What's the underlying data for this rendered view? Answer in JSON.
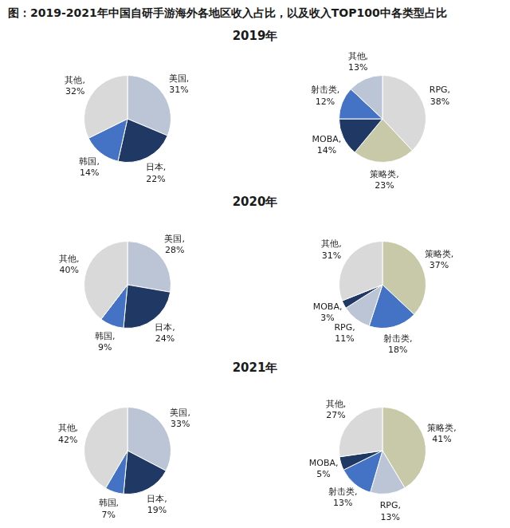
{
  "title": "图：2019-2021年中国自研手游海外各地区收入占比，以及收入TOP100中各类型占比",
  "chart_data": [
    {
      "type": "pie",
      "title": "2019年",
      "categories": [
        "美国",
        "日本",
        "韩国",
        "其他"
      ],
      "values": [
        31,
        22,
        14,
        32
      ],
      "colors": [
        "#bcc5d6",
        "#1f3864",
        "#4472c4",
        "#d9d9d9"
      ],
      "value_labels": [
        "美国,\n31%",
        "日本,\n22%",
        "韩国,\n14%",
        "其他,\n32%"
      ],
      "data_labels": true,
      "legend": false
    },
    {
      "type": "pie",
      "categories": [
        "RPG",
        "策略类",
        "MOBA",
        "射击类",
        "其他"
      ],
      "values": [
        38,
        23,
        14,
        12,
        13
      ],
      "colors": [
        "#d9d9d9",
        "#c8c9a8",
        "#1f3864",
        "#4472c4",
        "#bcc5d6"
      ],
      "value_labels": [
        "RPG,\n38%",
        "策略类,\n23%",
        "MOBA,\n14%",
        "射击类,\n12%",
        "其他,\n13%"
      ],
      "data_labels": true,
      "legend": false
    },
    {
      "type": "pie",
      "title": "2020年",
      "categories": [
        "美国",
        "日本",
        "韩国",
        "其他"
      ],
      "values": [
        28,
        24,
        9,
        40
      ],
      "colors": [
        "#bcc5d6",
        "#1f3864",
        "#4472c4",
        "#d9d9d9"
      ],
      "value_labels": [
        "美国,\n28%",
        "日本,\n24%",
        "韩国,\n9%",
        "其他,\n40%"
      ],
      "data_labels": true,
      "legend": false
    },
    {
      "type": "pie",
      "categories": [
        "策略类",
        "射击类",
        "RPG",
        "MOBA",
        "其他"
      ],
      "values": [
        37,
        18,
        11,
        3,
        31
      ],
      "colors": [
        "#c8c9a8",
        "#4472c4",
        "#bcc5d6",
        "#1f3864",
        "#d9d9d9"
      ],
      "value_labels": [
        "策略类,\n37%",
        "射击类,\n18%",
        "RPG,\n11%",
        "MOBA,\n3%",
        "其他,\n31%"
      ],
      "data_labels": true,
      "legend": false
    },
    {
      "type": "pie",
      "title": "2021年",
      "categories": [
        "美国",
        "日本",
        "韩国",
        "其他"
      ],
      "values": [
        33,
        19,
        7,
        42
      ],
      "colors": [
        "#bcc5d6",
        "#1f3864",
        "#4472c4",
        "#d9d9d9"
      ],
      "value_labels": [
        "美国,\n33%",
        "日本,\n19%",
        "韩国,\n7%",
        "其他,\n42%"
      ],
      "data_labels": true,
      "legend": false
    },
    {
      "type": "pie",
      "categories": [
        "策略类",
        "RPG",
        "射击类",
        "MOBA",
        "其他"
      ],
      "values": [
        41,
        13,
        13,
        5,
        27
      ],
      "colors": [
        "#c8c9a8",
        "#bcc5d6",
        "#4472c4",
        "#1f3864",
        "#d9d9d9"
      ],
      "value_labels": [
        "策略类,\n41%",
        "RPG,\n13%",
        "射击类,\n13%",
        "MOBA,\n5%",
        "其他,\n27%"
      ],
      "data_labels": true,
      "legend": false
    }
  ]
}
